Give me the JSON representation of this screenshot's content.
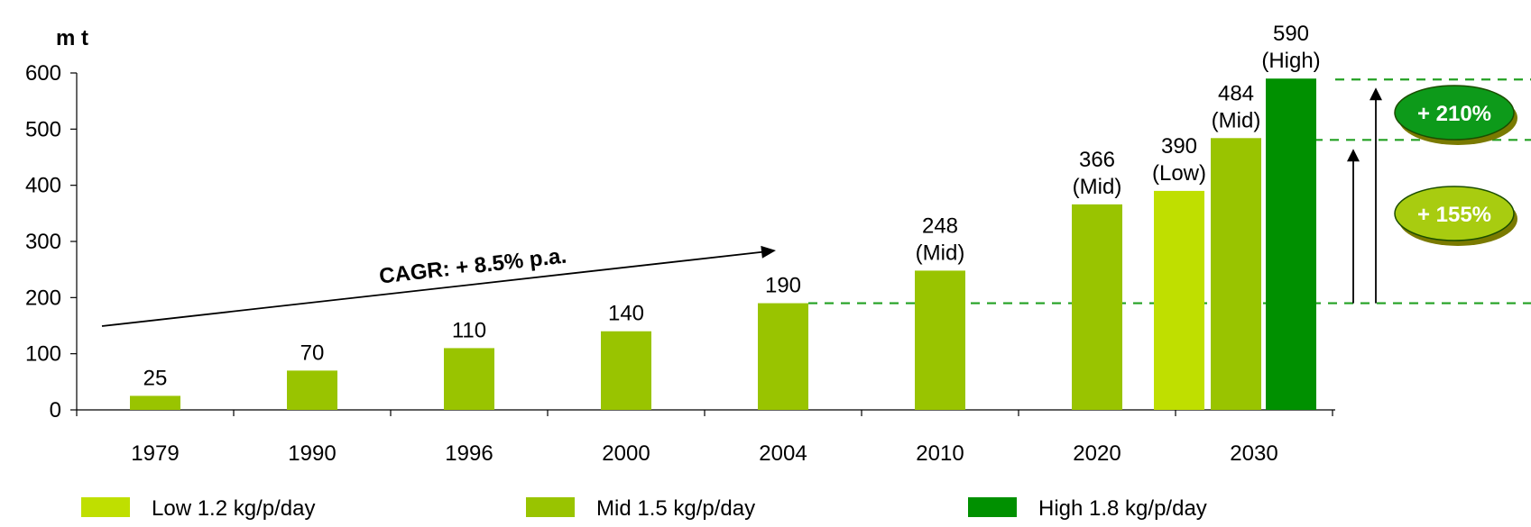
{
  "chart_data": {
    "type": "bar",
    "unit_label": "m t",
    "ylim": [
      0,
      600
    ],
    "yticks": [
      0,
      100,
      200,
      300,
      400,
      500,
      600
    ],
    "categories": [
      "1979",
      "1990",
      "1996",
      "2000",
      "2004",
      "2010",
      "2020",
      "2030"
    ],
    "bars": [
      {
        "category": "1979",
        "series": "mid",
        "value": 25,
        "label": "25"
      },
      {
        "category": "1990",
        "series": "mid",
        "value": 70,
        "label": "70"
      },
      {
        "category": "1996",
        "series": "mid",
        "value": 110,
        "label": "110"
      },
      {
        "category": "2000",
        "series": "mid",
        "value": 140,
        "label": "140"
      },
      {
        "category": "2004",
        "series": "mid",
        "value": 190,
        "label": "190"
      },
      {
        "category": "2010",
        "series": "mid",
        "value": 248,
        "label": "248",
        "label2": "(Mid)"
      },
      {
        "category": "2020",
        "series": "mid",
        "value": 366,
        "label": "366",
        "label2": "(Mid)"
      },
      {
        "category": "2030",
        "series": "low",
        "value": 390,
        "label": "390",
        "label2": "(Low)"
      },
      {
        "category": "2030",
        "series": "mid",
        "value": 484,
        "label": "484",
        "label2": "(Mid)"
      },
      {
        "category": "2030",
        "series": "high",
        "value": 590,
        "label": "590",
        "label2": "(High)"
      }
    ],
    "legend": [
      {
        "key": "low",
        "name": "Low 1.2 kg/p/day",
        "color": "#bfdf00"
      },
      {
        "key": "mid",
        "name": "Mid 1.5 kg/p/day",
        "color": "#99c400"
      },
      {
        "key": "high",
        "name": "High 1.8 kg/p/day",
        "color": "#009000"
      }
    ],
    "legend_placement": "bottom",
    "grid": false,
    "annotations": {
      "cagr": "CAGR: + 8.5% p.a.",
      "reference_value": 190,
      "badge_high": "+ 210%",
      "badge_mid": "+ 155%"
    },
    "colors": {
      "low": "#bfdf00",
      "mid": "#99c400",
      "high": "#009000",
      "dashed": "#22a022",
      "badge_high_fill": "#0d9a1a",
      "badge_mid_fill": "#a8cc10",
      "badge_shadow": "#7a7a00"
    }
  }
}
